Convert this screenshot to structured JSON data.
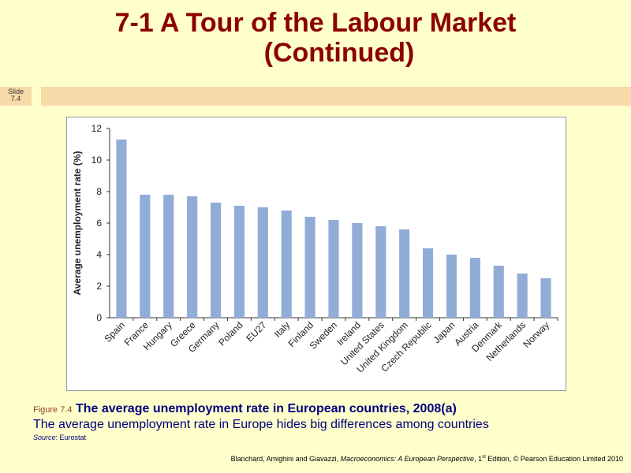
{
  "slide": {
    "title_line1": "7-1  A Tour of the Labour Market",
    "title_line2": "(Continued)",
    "slide_label_1": "Slide",
    "slide_label_2": "7.4"
  },
  "caption": {
    "figure_label": "Figure 7.4",
    "title": "The average unemployment rate in European countries, 2008(a)",
    "subtitle": "The average unemployment  rate in Europe hides big differences among countries",
    "source_label": "Source",
    "source_value": ": Eurostat"
  },
  "credit": {
    "authors": "Blanchard, Amighini and Giavazzi, ",
    "book": "Macroeconomics: A European Perspective",
    "edition": ", 1",
    "edition_sup": "st",
    "rest": " Edition, © Pearson Education Limited 2010"
  },
  "colors": {
    "bar": "#92acd8",
    "title": "#8b0000",
    "caption": "#000080",
    "background": "#ffffcc",
    "band": "#f8d9a8"
  },
  "chart_data": {
    "type": "bar",
    "title": "",
    "xlabel": "",
    "ylabel": "Average unemployment rate (%)",
    "ylim": [
      0,
      12
    ],
    "yticks": [
      0,
      2,
      4,
      6,
      8,
      10,
      12
    ],
    "grid": false,
    "categories": [
      "Spain",
      "France",
      "Hungary",
      "Greece",
      "Germany",
      "Poland",
      "EU27",
      "Italy",
      "Finland",
      "Sweden",
      "Ireland",
      "United States",
      "United Kingdom",
      "Czech Republic",
      "Japan",
      "Austria",
      "Denmark",
      "Netherlands",
      "Norway"
    ],
    "values": [
      11.3,
      7.8,
      7.8,
      7.7,
      7.3,
      7.1,
      7.0,
      6.8,
      6.4,
      6.2,
      6.0,
      5.8,
      5.6,
      4.4,
      4.0,
      3.8,
      3.3,
      2.8,
      2.5
    ]
  }
}
